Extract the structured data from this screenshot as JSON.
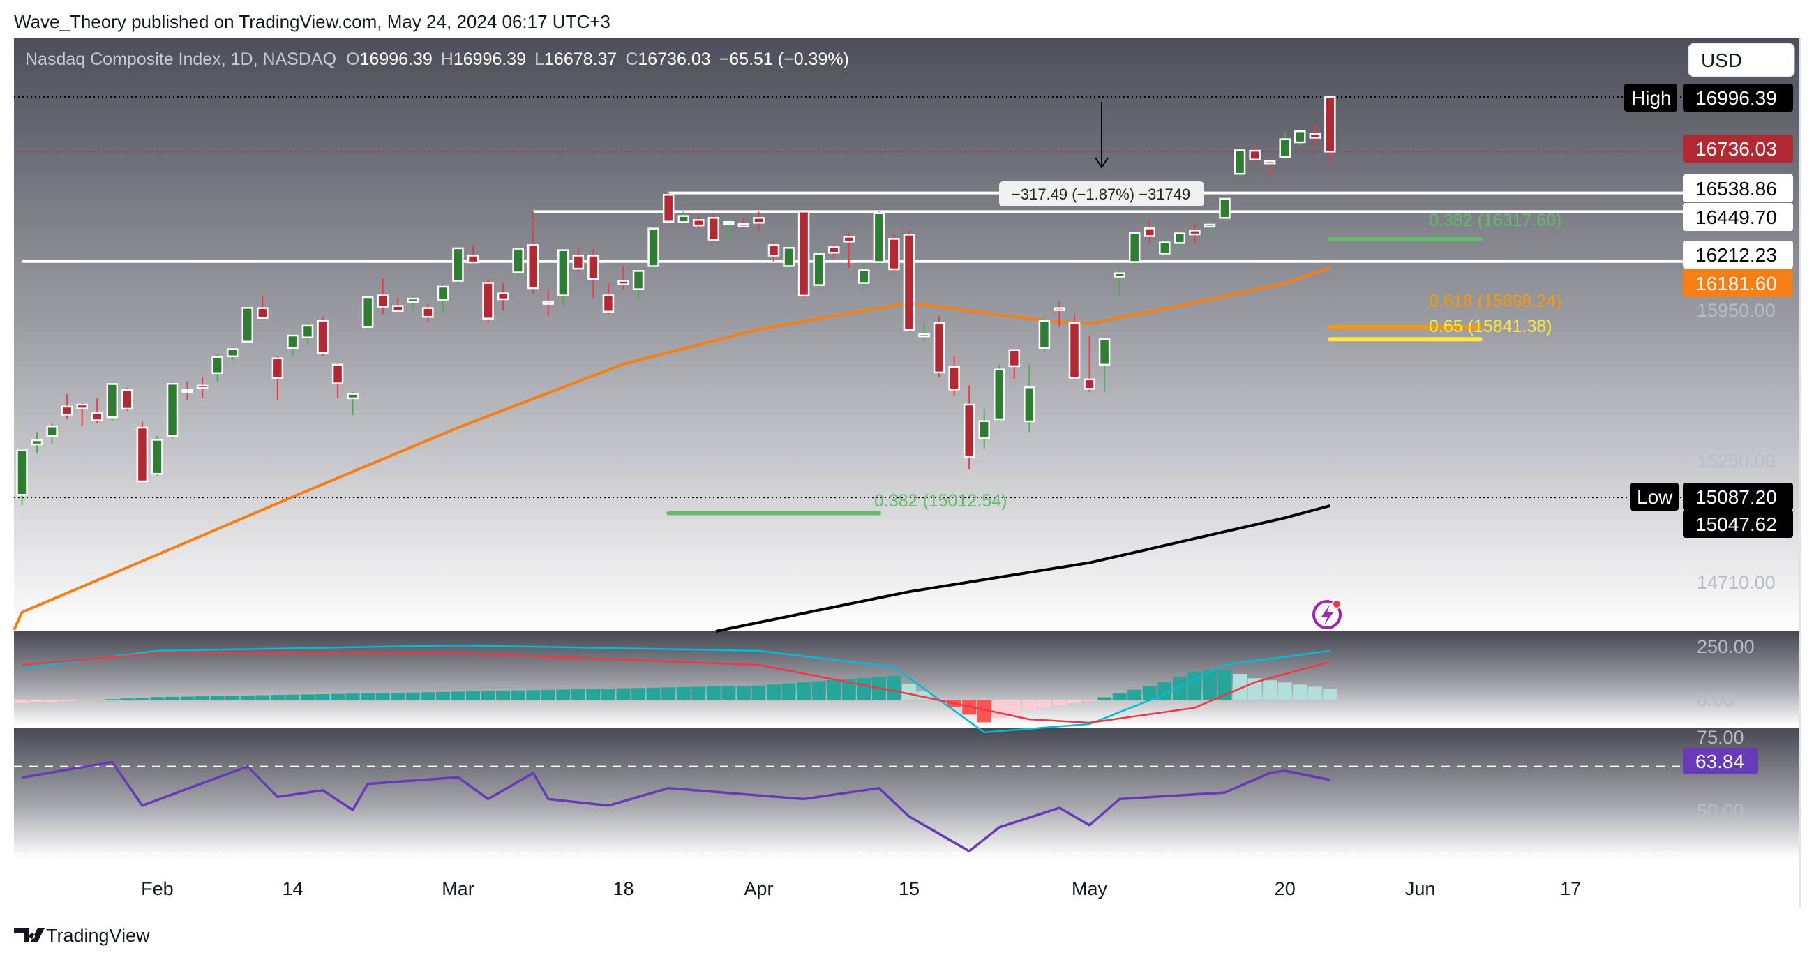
{
  "header": {
    "published": "Wave_Theory published on TradingView.com, May 24, 2024 06:17 UTC+3"
  },
  "legend": {
    "symbol": "Nasdaq Composite Index, 1D, NASDAQ",
    "o_label": "O",
    "o": "16996.39",
    "h_label": "H",
    "h": "16996.39",
    "l_label": "L",
    "l": "16678.37",
    "c_label": "C",
    "c": "16736.03",
    "change": "−65.51 (−0.39%)"
  },
  "currency_button": "USD",
  "price_axis": {
    "ticks": [
      "15950.00",
      "15250.00",
      "14710.00"
    ],
    "high_tag": "High",
    "high_value": "16996.39",
    "last_value": "16736.03",
    "level_1": "16538.86",
    "level_2": "16449.70",
    "level_3": "16212.23",
    "sma50_value": "16181.60",
    "low_tag": "Low",
    "low_value": "15087.20",
    "sma200_value": "15047.62"
  },
  "macd_axis": {
    "ticks": [
      "250.00",
      "0.00"
    ]
  },
  "rsi_axis": {
    "ticks": [
      "75.00",
      "50.00"
    ],
    "value": "63.84"
  },
  "time_axis": [
    {
      "date": "2024-02-01",
      "label": "Feb"
    },
    {
      "date": "2024-02-14",
      "label": "14"
    },
    {
      "date": "2024-03-01",
      "label": "Mar"
    },
    {
      "date": "2024-03-18",
      "label": "18"
    },
    {
      "date": "2024-04-01",
      "label": "Apr"
    },
    {
      "date": "2024-04-15",
      "label": "15"
    },
    {
      "date": "2024-05-01",
      "label": "May"
    },
    {
      "date": "2024-05-20",
      "label": "20"
    },
    {
      "date": "2024-06-03",
      "label": "Jun"
    },
    {
      "date": "2024-06-17",
      "label": "17"
    }
  ],
  "annotations": {
    "measure": "−317.49 (−1.87%) −31749",
    "fib_upper_382": "0.382 (16317.60)",
    "fib_618": "0.618 (15898.24)",
    "fib_65": "0.65 (15841.38)",
    "fib_lower_382": "0.382 (15012.54)"
  },
  "footer": {
    "brand": "TradingView"
  },
  "colors": {
    "up": "#2e7d32",
    "down": "#b22833",
    "sma50": "#f57f17",
    "sma200": "#000000",
    "macd": "#00bcd4",
    "signal": "#f23645",
    "rsi": "#673ab7",
    "fib_382": "#66bb6a",
    "fib_618": "#ff9800",
    "fib_65": "#ffeb3b"
  },
  "chart_data": {
    "type": "candlestick",
    "symbol": "Nasdaq Composite Index",
    "interval": "1D",
    "ylim": [
      14450,
      17120
    ],
    "candles_ohlc": [
      [
        "2024-01-19",
        15100,
        15320,
        15050,
        15311
      ],
      [
        "2024-01-22",
        15340,
        15400,
        15300,
        15360
      ],
      [
        "2024-01-23",
        15380,
        15440,
        15340,
        15426
      ],
      [
        "2024-01-24",
        15520,
        15580,
        15460,
        15482
      ],
      [
        "2024-01-25",
        15530,
        15540,
        15430,
        15511
      ],
      [
        "2024-01-26",
        15490,
        15560,
        15440,
        15455
      ],
      [
        "2024-01-29",
        15470,
        15630,
        15450,
        15628
      ],
      [
        "2024-01-30",
        15600,
        15610,
        15500,
        15510
      ],
      [
        "2024-01-31",
        15420,
        15450,
        15160,
        15164
      ],
      [
        "2024-02-01",
        15200,
        15380,
        15190,
        15362
      ],
      [
        "2024-02-02",
        15380,
        15640,
        15370,
        15629
      ],
      [
        "2024-02-05",
        15600,
        15640,
        15550,
        15598
      ],
      [
        "2024-02-06",
        15620,
        15660,
        15560,
        15609
      ],
      [
        "2024-02-07",
        15680,
        15770,
        15640,
        15757
      ],
      [
        "2024-02-08",
        15760,
        15800,
        15740,
        15794
      ],
      [
        "2024-02-09",
        15830,
        16000,
        15820,
        15991
      ],
      [
        "2024-02-12",
        15990,
        16050,
        15940,
        15943
      ],
      [
        "2024-02-13",
        15750,
        15760,
        15550,
        15656
      ],
      [
        "2024-02-14",
        15800,
        15870,
        15760,
        15859
      ],
      [
        "2024-02-15",
        15850,
        15920,
        15820,
        15906
      ],
      [
        "2024-02-16",
        15930,
        15950,
        15760,
        15776
      ],
      [
        "2024-02-20",
        15720,
        15730,
        15560,
        15631
      ],
      [
        "2024-02-21",
        15560,
        15590,
        15480,
        15581
      ],
      [
        "2024-02-22",
        15900,
        16050,
        15890,
        16042
      ],
      [
        "2024-02-23",
        16050,
        16130,
        15960,
        15997
      ],
      [
        "2024-02-26",
        16000,
        16040,
        15970,
        15976
      ],
      [
        "2024-02-27",
        16020,
        16050,
        15980,
        16035
      ],
      [
        "2024-02-28",
        15990,
        16010,
        15920,
        15948
      ],
      [
        "2024-02-29",
        16030,
        16110,
        15970,
        16092
      ],
      [
        "2024-03-01",
        16120,
        16280,
        16100,
        16275
      ],
      [
        "2024-03-04",
        16240,
        16290,
        16200,
        16208
      ],
      [
        "2024-03-05",
        16110,
        16130,
        15920,
        15940
      ],
      [
        "2024-03-06",
        16060,
        16110,
        15980,
        16032
      ],
      [
        "2024-03-07",
        16160,
        16290,
        16150,
        16273
      ],
      [
        "2024-03-08",
        16290,
        16450,
        16060,
        16085
      ],
      [
        "2024-03-11",
        16020,
        16080,
        15950,
        16019
      ],
      [
        "2024-03-12",
        16050,
        16270,
        16000,
        16266
      ],
      [
        "2024-03-13",
        16240,
        16280,
        16160,
        16178
      ],
      [
        "2024-03-14",
        16240,
        16270,
        16040,
        16129
      ],
      [
        "2024-03-15",
        16050,
        16110,
        15960,
        15973
      ],
      [
        "2024-03-18",
        16120,
        16190,
        16080,
        16103
      ],
      [
        "2024-03-19",
        16080,
        16170,
        16030,
        16167
      ],
      [
        "2024-03-20",
        16190,
        16370,
        16170,
        16369
      ],
      [
        "2024-03-21",
        16530,
        16540,
        16400,
        16402
      ],
      [
        "2024-03-22",
        16400,
        16450,
        16390,
        16429
      ],
      [
        "2024-03-25",
        16410,
        16430,
        16370,
        16384
      ],
      [
        "2024-03-26",
        16420,
        16440,
        16310,
        16316
      ],
      [
        "2024-03-27",
        16400,
        16410,
        16310,
        16400
      ],
      [
        "2024-03-28",
        16390,
        16420,
        16370,
        16379
      ],
      [
        "2024-04-01",
        16420,
        16450,
        16360,
        16397
      ],
      [
        "2024-04-02",
        16290,
        16310,
        16210,
        16240
      ],
      [
        "2024-04-03",
        16190,
        16320,
        16180,
        16277
      ],
      [
        "2024-04-04",
        16450,
        16450,
        16040,
        16049
      ],
      [
        "2024-04-05",
        16100,
        16290,
        16090,
        16249
      ],
      [
        "2024-04-08",
        16280,
        16290,
        16230,
        16254
      ],
      [
        "2024-04-09",
        16330,
        16350,
        16180,
        16307
      ],
      [
        "2024-04-10",
        16110,
        16200,
        16080,
        16170
      ],
      [
        "2024-04-11",
        16210,
        16450,
        16190,
        16442
      ],
      [
        "2024-04-12",
        16320,
        16340,
        16160,
        16175
      ],
      [
        "2024-04-15",
        16340,
        16360,
        15880,
        15885
      ],
      [
        "2024-04-16",
        15860,
        15920,
        15830,
        15865
      ],
      [
        "2024-04-17",
        15920,
        15950,
        15660,
        15683
      ],
      [
        "2024-04-18",
        15710,
        15760,
        15570,
        15602
      ],
      [
        "2024-04-19",
        15530,
        15620,
        15220,
        15282
      ],
      [
        "2024-04-22",
        15370,
        15510,
        15320,
        15451
      ],
      [
        "2024-04-23",
        15460,
        15720,
        15450,
        15697
      ],
      [
        "2024-04-24",
        15790,
        15790,
        15650,
        15713
      ],
      [
        "2024-04-25",
        15450,
        15720,
        15400,
        15612
      ],
      [
        "2024-04-26",
        15800,
        15950,
        15780,
        15928
      ],
      [
        "2024-04-29",
        15990,
        16020,
        15900,
        15983
      ],
      [
        "2024-04-30",
        15920,
        15960,
        15650,
        15658
      ],
      [
        "2024-05-01",
        15650,
        15860,
        15590,
        15605
      ],
      [
        "2024-05-02",
        15720,
        15850,
        15590,
        15841
      ],
      [
        "2024-05-03",
        16140,
        16190,
        16050,
        16156
      ],
      [
        "2024-05-06",
        16210,
        16350,
        16190,
        16349
      ],
      [
        "2024-05-07",
        16370,
        16410,
        16300,
        16333
      ],
      [
        "2024-05-08",
        16250,
        16330,
        16240,
        16303
      ],
      [
        "2024-05-09",
        16300,
        16350,
        16260,
        16346
      ],
      [
        "2024-05-10",
        16360,
        16400,
        16300,
        16341
      ],
      [
        "2024-05-13",
        16380,
        16410,
        16330,
        16388
      ],
      [
        "2024-05-14",
        16420,
        16520,
        16400,
        16511
      ],
      [
        "2024-05-15",
        16630,
        16750,
        16620,
        16742
      ],
      [
        "2024-05-16",
        16740,
        16770,
        16690,
        16698
      ],
      [
        "2024-05-17",
        16690,
        16700,
        16620,
        16686
      ],
      [
        "2024-05-20",
        16710,
        16830,
        16700,
        16795
      ],
      [
        "2024-05-21",
        16780,
        16840,
        16760,
        16833
      ],
      [
        "2024-05-22",
        16820,
        16860,
        16760,
        16802
      ],
      [
        "2024-05-23",
        16996.39,
        16996.39,
        16678.37,
        16736.03
      ]
    ],
    "sma50": [
      [
        "2024-01-19",
        14540
      ],
      [
        "2024-02-01",
        14814
      ],
      [
        "2024-02-14",
        15090
      ],
      [
        "2024-03-01",
        15420
      ],
      [
        "2024-03-18",
        15723
      ],
      [
        "2024-04-01",
        15889
      ],
      [
        "2024-04-15",
        16015
      ],
      [
        "2024-04-26",
        15930
      ],
      [
        "2024-05-01",
        15916
      ],
      [
        "2024-05-10",
        16015
      ],
      [
        "2024-05-20",
        16109
      ],
      [
        "2024-05-23",
        16181.6
      ]
    ],
    "sma200": [
      [
        "2024-03-28",
        14450
      ],
      [
        "2024-04-15",
        14638
      ],
      [
        "2024-05-01",
        14776
      ],
      [
        "2024-05-20",
        14990
      ],
      [
        "2024-05-23",
        15047.62
      ]
    ],
    "horizontal_levels": [
      {
        "value": 16538.86,
        "from": "2024-03-21"
      },
      {
        "value": 16449.7,
        "from": "2024-03-08"
      },
      {
        "value": 16212.23,
        "from": "2024-01-19"
      }
    ],
    "fib_levels": [
      {
        "value": 16317.6,
        "ratio": 0.382,
        "from": "2024-05-23",
        "to": "2024-06-07",
        "color": "#66bb6a"
      },
      {
        "value": 15898.24,
        "ratio": 0.618,
        "from": "2024-05-23",
        "to": "2024-06-07",
        "color": "#ff9800"
      },
      {
        "value": 15841.38,
        "ratio": 0.65,
        "from": "2024-05-23",
        "to": "2024-06-07",
        "color": "#ffeb3b"
      },
      {
        "value": 15012.54,
        "ratio": 0.382,
        "from": "2024-03-21",
        "to": "2024-04-11",
        "color": "#66bb6a"
      }
    ],
    "macd": [
      [
        "2024-01-19",
        144
      ],
      [
        "2024-02-01",
        225
      ],
      [
        "2024-03-01",
        250
      ],
      [
        "2024-04-01",
        225
      ],
      [
        "2024-04-12",
        150
      ],
      [
        "2024-04-22",
        -150
      ],
      [
        "2024-05-01",
        -112
      ],
      [
        "2024-05-08",
        25
      ],
      [
        "2024-05-14",
        160
      ],
      [
        "2024-05-23",
        225
      ]
    ],
    "signal": [
      [
        "2024-01-19",
        160
      ],
      [
        "2024-02-01",
        213
      ],
      [
        "2024-03-01",
        213
      ],
      [
        "2024-04-01",
        160
      ],
      [
        "2024-04-15",
        27
      ],
      [
        "2024-04-25",
        -90
      ],
      [
        "2024-05-01",
        -106
      ],
      [
        "2024-05-10",
        -37
      ],
      [
        "2024-05-16",
        80
      ],
      [
        "2024-05-23",
        175
      ]
    ],
    "rsi": [
      [
        "2024-01-19",
        64.9
      ],
      [
        "2024-01-29",
        72
      ],
      [
        "2024-01-31",
        52
      ],
      [
        "2024-02-09",
        70
      ],
      [
        "2024-02-13",
        56
      ],
      [
        "2024-02-16",
        59
      ],
      [
        "2024-02-21",
        50
      ],
      [
        "2024-02-22",
        62
      ],
      [
        "2024-03-01",
        65
      ],
      [
        "2024-03-05",
        55
      ],
      [
        "2024-03-08",
        67
      ],
      [
        "2024-03-11",
        55
      ],
      [
        "2024-03-15",
        52
      ],
      [
        "2024-03-21",
        60
      ],
      [
        "2024-04-04",
        55
      ],
      [
        "2024-04-11",
        60
      ],
      [
        "2024-04-15",
        47
      ],
      [
        "2024-04-19",
        31
      ],
      [
        "2024-04-23",
        42
      ],
      [
        "2024-04-29",
        51
      ],
      [
        "2024-05-01",
        43
      ],
      [
        "2024-05-03",
        55
      ],
      [
        "2024-05-14",
        58
      ],
      [
        "2024-05-17",
        67
      ],
      [
        "2024-05-20",
        68
      ],
      [
        "2024-05-23",
        63.84
      ]
    ],
    "rsi_bands": [
      70,
      30
    ]
  }
}
